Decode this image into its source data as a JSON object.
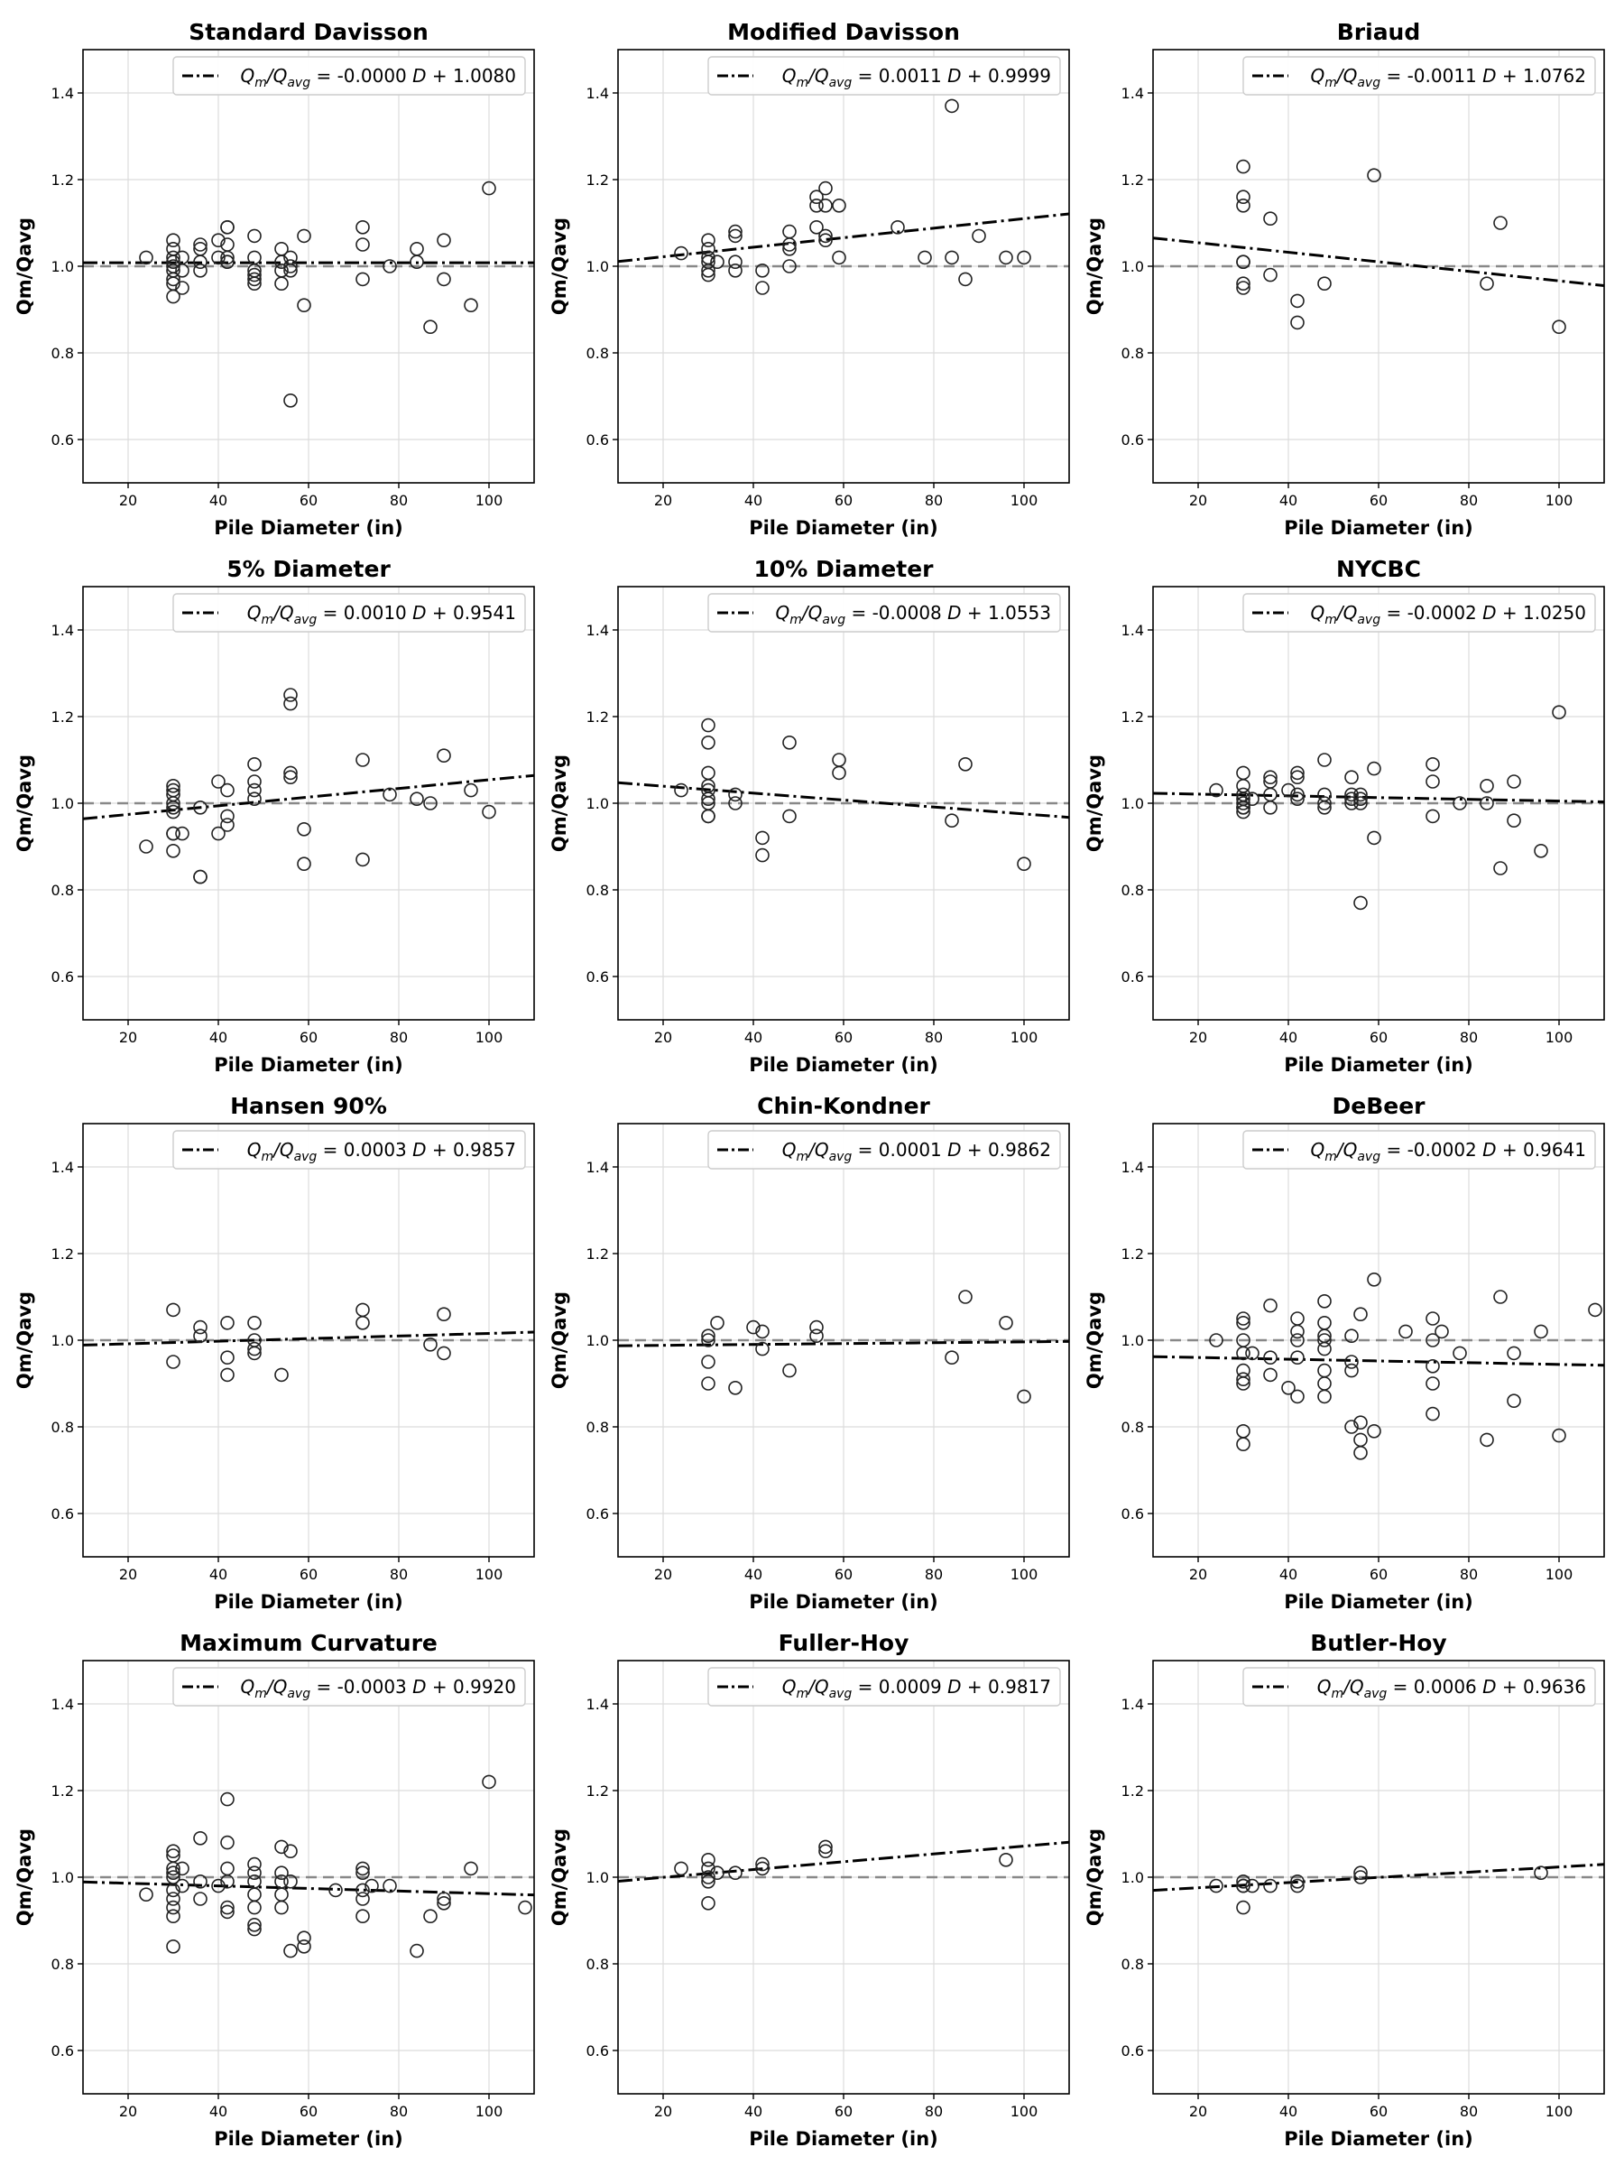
{
  "figure": {
    "xlabel": "Pile Diameter (in)",
    "ylabel": "Qm/Qavg",
    "xlim": [
      10,
      110
    ],
    "ylim": [
      0.5,
      1.5
    ],
    "xticks": [
      "20",
      "40",
      "60",
      "80",
      "100"
    ],
    "yticks": [
      "0.6",
      "0.8",
      "1.0",
      "1.2",
      "1.4"
    ],
    "grid": true,
    "legend_placement": "top-right",
    "reference_line": 1.0
  },
  "chart_data": [
    {
      "type": "scatter",
      "title": "Standard Davisson",
      "legend": {
        "equation": "= -0.0000 D + 1.0080"
      },
      "fit": {
        "slope": 0.0,
        "intercept": 1.008
      },
      "x": [
        24,
        30,
        30,
        30,
        30,
        30,
        30,
        30,
        30,
        30,
        32,
        32,
        32,
        36,
        36,
        36,
        36,
        40,
        40,
        42,
        42,
        42,
        42,
        42,
        42,
        48,
        48,
        48,
        48,
        48,
        48,
        54,
        54,
        54,
        54,
        56,
        56,
        56,
        56,
        59,
        59,
        72,
        72,
        72,
        78,
        84,
        84,
        87,
        90,
        90,
        96,
        100
      ],
      "y": [
        1.02,
        1.06,
        1.04,
        1.02,
        1.01,
        1.0,
        0.99,
        0.97,
        0.96,
        0.93,
        1.02,
        0.99,
        0.95,
        1.05,
        1.04,
        1.01,
        0.99,
        1.06,
        1.02,
        1.09,
        1.09,
        1.05,
        1.02,
        1.01,
        1.01,
        1.07,
        1.02,
        0.99,
        0.98,
        0.97,
        0.96,
        1.04,
        1.01,
        0.99,
        0.96,
        1.02,
        1.0,
        0.99,
        0.69,
        1.07,
        0.91,
        1.09,
        1.05,
        0.97,
        1.0,
        1.04,
        1.01,
        0.86,
        1.06,
        0.97,
        0.91,
        1.18
      ]
    },
    {
      "type": "scatter",
      "title": "Modified Davisson",
      "legend": {
        "equation": "= 0.0011 D + 0.9999"
      },
      "fit": {
        "slope": 0.0011,
        "intercept": 0.9999
      },
      "x": [
        24,
        30,
        30,
        30,
        30,
        30,
        30,
        32,
        36,
        36,
        36,
        36,
        42,
        42,
        48,
        48,
        48,
        48,
        54,
        54,
        54,
        56,
        56,
        56,
        56,
        59,
        59,
        72,
        78,
        84,
        84,
        87,
        90,
        96,
        100
      ],
      "y": [
        1.03,
        1.06,
        1.04,
        1.02,
        1.01,
        0.99,
        0.98,
        1.01,
        1.08,
        1.07,
        1.01,
        0.99,
        0.99,
        0.95,
        1.08,
        1.05,
        1.04,
        1.0,
        1.16,
        1.14,
        1.09,
        1.18,
        1.14,
        1.07,
        1.06,
        1.14,
        1.02,
        1.09,
        1.02,
        1.37,
        1.02,
        0.97,
        1.07,
        1.02,
        1.02
      ]
    },
    {
      "type": "scatter",
      "title": "Briaud",
      "legend": {
        "equation": "= -0.0011 D + 1.0762"
      },
      "fit": {
        "slope": -0.0011,
        "intercept": 1.0762
      },
      "x": [
        30,
        30,
        30,
        30,
        30,
        30,
        30,
        36,
        36,
        42,
        42,
        48,
        59,
        84,
        87,
        100
      ],
      "y": [
        1.23,
        1.16,
        1.14,
        1.01,
        1.01,
        0.96,
        0.95,
        1.11,
        0.98,
        0.92,
        0.87,
        0.96,
        1.21,
        0.96,
        1.1,
        0.86
      ]
    },
    {
      "type": "scatter",
      "title": "5% Diameter",
      "legend": {
        "equation": "= 0.0010 D + 0.9541"
      },
      "fit": {
        "slope": 0.001,
        "intercept": 0.9541
      },
      "x": [
        24,
        30,
        30,
        30,
        30,
        30,
        30,
        30,
        30,
        30,
        32,
        36,
        36,
        36,
        40,
        40,
        42,
        42,
        42,
        48,
        48,
        48,
        48,
        56,
        56,
        56,
        56,
        59,
        59,
        72,
        72,
        78,
        84,
        87,
        90,
        96,
        100
      ],
      "y": [
        0.9,
        1.04,
        1.03,
        1.02,
        1.0,
        0.99,
        0.98,
        0.93,
        0.93,
        0.89,
        0.93,
        0.99,
        0.83,
        0.83,
        1.05,
        0.93,
        1.03,
        0.97,
        0.95,
        1.09,
        1.05,
        1.03,
        1.01,
        1.25,
        1.23,
        1.07,
        1.06,
        0.94,
        0.86,
        1.1,
        0.87,
        1.02,
        1.01,
        1.0,
        1.11,
        1.03,
        0.98
      ]
    },
    {
      "type": "scatter",
      "title": "10% Diameter",
      "legend": {
        "equation": "= -0.0008 D + 1.0553"
      },
      "fit": {
        "slope": -0.0008,
        "intercept": 1.0553
      },
      "x": [
        24,
        30,
        30,
        30,
        30,
        30,
        30,
        30,
        30,
        30,
        36,
        36,
        42,
        42,
        48,
        48,
        59,
        59,
        84,
        87,
        100
      ],
      "y": [
        1.03,
        1.18,
        1.14,
        1.07,
        1.04,
        1.03,
        1.01,
        1.0,
        0.97,
        0.97,
        1.02,
        1.0,
        0.92,
        0.88,
        1.14,
        0.97,
        1.1,
        1.07,
        0.96,
        1.09,
        0.86
      ]
    },
    {
      "type": "scatter",
      "title": "NYCBC",
      "legend": {
        "equation": "= -0.0002 D + 1.0250"
      },
      "fit": {
        "slope": -0.0002,
        "intercept": 1.025
      },
      "x": [
        24,
        30,
        30,
        30,
        30,
        30,
        30,
        30,
        30,
        32,
        36,
        36,
        36,
        36,
        40,
        42,
        42,
        42,
        42,
        48,
        48,
        48,
        48,
        54,
        54,
        54,
        54,
        56,
        56,
        56,
        56,
        59,
        59,
        72,
        72,
        72,
        78,
        84,
        84,
        90,
        90,
        96,
        100,
        87
      ],
      "y": [
        1.03,
        1.07,
        1.04,
        1.02,
        1.01,
        1.0,
        0.99,
        0.99,
        0.98,
        1.01,
        1.06,
        1.05,
        1.02,
        0.99,
        1.03,
        1.07,
        1.06,
        1.02,
        1.01,
        1.1,
        1.02,
        1.0,
        0.99,
        1.06,
        1.02,
        1.01,
        1.0,
        1.02,
        1.01,
        1.0,
        0.77,
        1.08,
        0.92,
        1.09,
        1.05,
        0.97,
        1.0,
        1.04,
        1.0,
        1.05,
        0.96,
        0.89,
        1.21,
        0.85
      ]
    },
    {
      "type": "scatter",
      "title": "Hansen 90%",
      "legend": {
        "equation": "= 0.0003 D + 0.9857"
      },
      "fit": {
        "slope": 0.0003,
        "intercept": 0.9857
      },
      "x": [
        30,
        30,
        36,
        36,
        42,
        42,
        42,
        48,
        48,
        48,
        48,
        54,
        72,
        72,
        87,
        90,
        90
      ],
      "y": [
        1.07,
        0.95,
        1.03,
        1.01,
        1.04,
        0.96,
        0.92,
        1.04,
        1.0,
        0.98,
        0.97,
        0.92,
        1.07,
        1.04,
        0.99,
        1.06,
        0.97
      ]
    },
    {
      "type": "scatter",
      "title": "Chin-Kondner",
      "legend": {
        "equation": "= 0.0001 D + 0.9862"
      },
      "fit": {
        "slope": 0.0001,
        "intercept": 0.9862
      },
      "x": [
        30,
        30,
        30,
        30,
        32,
        36,
        40,
        42,
        42,
        48,
        54,
        54,
        84,
        87,
        96,
        100
      ],
      "y": [
        1.01,
        1.0,
        0.95,
        0.9,
        1.04,
        0.89,
        1.03,
        1.02,
        0.98,
        0.93,
        1.03,
        1.01,
        0.96,
        1.1,
        1.04,
        0.87
      ]
    },
    {
      "type": "scatter",
      "title": "DeBeer",
      "legend": {
        "equation": "= -0.0002 D + 0.9641"
      },
      "fit": {
        "slope": -0.0002,
        "intercept": 0.9641
      },
      "x": [
        24,
        30,
        30,
        30,
        30,
        30,
        30,
        30,
        30,
        30,
        32,
        36,
        36,
        36,
        40,
        42,
        42,
        42,
        42,
        42,
        48,
        48,
        48,
        48,
        48,
        48,
        48,
        48,
        54,
        54,
        54,
        54,
        56,
        56,
        56,
        56,
        59,
        59,
        66,
        72,
        72,
        72,
        72,
        72,
        74,
        78,
        84,
        87,
        90,
        90,
        96,
        100,
        108
      ],
      "y": [
        1.0,
        1.05,
        1.04,
        1.0,
        0.97,
        0.93,
        0.91,
        0.9,
        0.79,
        0.76,
        0.97,
        1.08,
        0.96,
        0.92,
        0.89,
        1.05,
        1.02,
        1.0,
        0.96,
        0.87,
        1.09,
        1.04,
        1.01,
        1.0,
        0.98,
        0.93,
        0.9,
        0.87,
        1.01,
        0.95,
        0.93,
        0.8,
        1.06,
        0.81,
        0.77,
        0.74,
        1.14,
        0.79,
        1.02,
        1.05,
        1.0,
        0.94,
        0.9,
        0.83,
        1.02,
        0.97,
        0.77,
        1.1,
        0.97,
        0.86,
        1.02,
        0.78,
        1.07
      ]
    },
    {
      "type": "scatter",
      "title": "Maximum Curvature",
      "legend": {
        "equation": "= -0.0003 D + 0.9920"
      },
      "fit": {
        "slope": -0.0003,
        "intercept": 0.992
      },
      "x": [
        24,
        30,
        30,
        30,
        30,
        30,
        30,
        30,
        30,
        30,
        30,
        32,
        32,
        36,
        36,
        36,
        40,
        42,
        42,
        42,
        42,
        42,
        42,
        48,
        48,
        48,
        48,
        48,
        48,
        48,
        54,
        54,
        54,
        54,
        54,
        56,
        56,
        56,
        59,
        59,
        66,
        72,
        72,
        72,
        72,
        72,
        74,
        78,
        84,
        87,
        90,
        90,
        96,
        100,
        108
      ],
      "y": [
        0.96,
        1.06,
        1.05,
        1.02,
        1.0,
        0.97,
        0.95,
        0.93,
        0.91,
        0.84,
        1.01,
        1.02,
        0.98,
        1.09,
        0.99,
        0.95,
        0.98,
        1.18,
        1.08,
        1.02,
        0.99,
        0.93,
        0.92,
        1.03,
        1.01,
        0.99,
        0.96,
        0.93,
        0.89,
        0.88,
        1.07,
        1.01,
        0.99,
        0.96,
        0.93,
        1.06,
        0.99,
        0.83,
        0.86,
        0.84,
        0.97,
        1.02,
        1.01,
        0.97,
        0.95,
        0.91,
        0.98,
        0.98,
        0.83,
        0.91,
        0.95,
        0.94,
        1.02,
        1.22,
        0.93
      ]
    },
    {
      "type": "scatter",
      "title": "Fuller-Hoy",
      "legend": {
        "equation": "= 0.0009 D + 0.9817"
      },
      "fit": {
        "slope": 0.0009,
        "intercept": 0.9817
      },
      "x": [
        24,
        30,
        30,
        30,
        30,
        30,
        32,
        36,
        42,
        42,
        56,
        56,
        96
      ],
      "y": [
        1.02,
        1.04,
        1.02,
        1.0,
        0.99,
        0.94,
        1.01,
        1.01,
        1.03,
        1.02,
        1.07,
        1.06,
        1.04
      ]
    },
    {
      "type": "scatter",
      "title": "Butler-Hoy",
      "legend": {
        "equation": "= 0.0006 D + 0.9636"
      },
      "fit": {
        "slope": 0.0006,
        "intercept": 0.9636
      },
      "x": [
        24,
        30,
        30,
        30,
        30,
        32,
        36,
        42,
        42,
        56,
        56,
        96
      ],
      "y": [
        0.98,
        0.99,
        0.98,
        0.98,
        0.93,
        0.98,
        0.98,
        0.99,
        0.98,
        1.01,
        1.0,
        1.01
      ]
    }
  ]
}
